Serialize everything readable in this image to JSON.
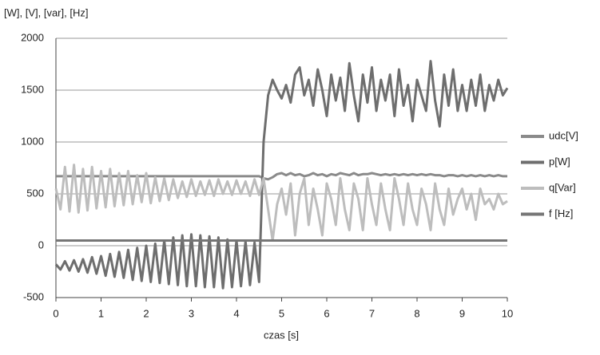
{
  "chart_data": {
    "type": "line",
    "y_axis_label": "[W], [V], [var], [Hz]",
    "x_axis_label": "czas [s]",
    "x": [
      0,
      0.1,
      0.2,
      0.3,
      0.4,
      0.5,
      0.6,
      0.7,
      0.8,
      0.9,
      1,
      1.1,
      1.2,
      1.3,
      1.4,
      1.5,
      1.6,
      1.7,
      1.8,
      1.9,
      2,
      2.1,
      2.2,
      2.3,
      2.4,
      2.5,
      2.6,
      2.7,
      2.8,
      2.9,
      3,
      3.1,
      3.2,
      3.3,
      3.4,
      3.5,
      3.6,
      3.7,
      3.8,
      3.9,
      4,
      4.1,
      4.2,
      4.3,
      4.4,
      4.5,
      4.6,
      4.7,
      4.8,
      4.9,
      5,
      5.1,
      5.2,
      5.3,
      5.4,
      5.5,
      5.6,
      5.7,
      5.8,
      5.9,
      6,
      6.1,
      6.2,
      6.3,
      6.4,
      6.5,
      6.6,
      6.7,
      6.8,
      6.9,
      7,
      7.1,
      7.2,
      7.3,
      7.4,
      7.5,
      7.6,
      7.7,
      7.8,
      7.9,
      8,
      8.1,
      8.2,
      8.3,
      8.4,
      8.5,
      8.6,
      8.7,
      8.8,
      8.9,
      9,
      9.1,
      9.2,
      9.3,
      9.4,
      9.5,
      9.6,
      9.7,
      9.8,
      9.9,
      10
    ],
    "series": [
      {
        "name": "udc[V]",
        "color": "#8a8a8a",
        "values": [
          670,
          670,
          670,
          670,
          670,
          670,
          670,
          670,
          670,
          670,
          670,
          670,
          670,
          670,
          670,
          670,
          670,
          670,
          670,
          670,
          670,
          670,
          670,
          670,
          670,
          670,
          670,
          670,
          670,
          670,
          670,
          670,
          670,
          670,
          670,
          670,
          670,
          670,
          670,
          670,
          670,
          670,
          670,
          670,
          670,
          670,
          650,
          640,
          660,
          690,
          700,
          680,
          700,
          680,
          690,
          670,
          680,
          700,
          680,
          690,
          670,
          690,
          680,
          700,
          690,
          680,
          700,
          680,
          690,
          690,
          700,
          690,
          680,
          690,
          680,
          690,
          680,
          690,
          680,
          690,
          680,
          690,
          680,
          690,
          680,
          680,
          670,
          680,
          680,
          670,
          680,
          670,
          680,
          670,
          680,
          670,
          680,
          670,
          680,
          670,
          670
        ]
      },
      {
        "name": "p[W]",
        "color": "#6e6e6e",
        "values": [
          -180,
          -230,
          -150,
          -240,
          -140,
          -250,
          -130,
          -260,
          -110,
          -270,
          -100,
          -290,
          -80,
          -300,
          -60,
          -310,
          -40,
          -330,
          -20,
          -340,
          0,
          -350,
          20,
          -360,
          50,
          -370,
          80,
          -380,
          100,
          -390,
          110,
          -390,
          100,
          -400,
          90,
          -400,
          80,
          -410,
          60,
          -400,
          50,
          -390,
          40,
          -380,
          30,
          -350,
          1000,
          1450,
          1600,
          1500,
          1420,
          1550,
          1380,
          1650,
          1720,
          1450,
          1600,
          1350,
          1700,
          1500,
          1250,
          1650,
          1400,
          1620,
          1300,
          1760,
          1450,
          1200,
          1650,
          1380,
          1720,
          1300,
          1600,
          1400,
          1650,
          1250,
          1700,
          1350,
          1550,
          1200,
          1600,
          1450,
          1300,
          1780,
          1400,
          1150,
          1650,
          1350,
          1700,
          1300,
          1550,
          1300,
          1600,
          1350,
          1650,
          1300,
          1550,
          1400,
          1600,
          1450,
          1520
        ]
      },
      {
        "name": "q[Var]",
        "color": "#bdbdbd",
        "values": [
          550,
          350,
          760,
          330,
          780,
          320,
          740,
          340,
          760,
          360,
          720,
          370,
          740,
          380,
          700,
          390,
          720,
          400,
          680,
          420,
          700,
          410,
          660,
          430,
          650,
          440,
          640,
          460,
          620,
          470,
          640,
          480,
          620,
          490,
          630,
          480,
          640,
          500,
          620,
          490,
          630,
          500,
          620,
          480,
          640,
          490,
          650,
          350,
          50,
          400,
          550,
          300,
          600,
          100,
          500,
          650,
          200,
          550,
          350,
          100,
          600,
          450,
          200,
          650,
          350,
          150,
          600,
          450,
          150,
          650,
          400,
          200,
          600,
          350,
          150,
          650,
          450,
          200,
          600,
          350,
          200,
          550,
          400,
          150,
          600,
          350,
          200,
          550,
          300,
          450,
          550,
          350,
          500,
          250,
          550,
          400,
          450,
          350,
          500,
          400,
          430
        ]
      },
      {
        "name": "f [Hz]",
        "color": "#767676",
        "values": [
          50,
          50,
          50,
          50,
          50,
          50,
          50,
          50,
          50,
          50,
          50,
          50,
          50,
          50,
          50,
          50,
          50,
          50,
          50,
          50,
          50,
          50,
          50,
          50,
          50,
          50,
          50,
          50,
          50,
          50,
          50,
          50,
          50,
          50,
          50,
          50,
          50,
          50,
          50,
          50,
          50,
          50,
          50,
          50,
          50,
          50,
          50,
          50,
          50,
          50,
          50,
          50,
          50,
          50,
          50,
          50,
          50,
          50,
          50,
          50,
          50,
          50,
          50,
          50,
          50,
          50,
          50,
          50,
          50,
          50,
          50,
          50,
          50,
          50,
          50,
          50,
          50,
          50,
          50,
          50,
          50,
          50,
          50,
          50,
          50,
          50,
          50,
          50,
          50,
          50,
          50,
          50,
          50,
          50,
          50,
          50,
          50,
          50,
          50,
          50,
          50
        ]
      }
    ],
    "xlim": [
      0,
      10
    ],
    "xticks": [
      0,
      1,
      2,
      3,
      4,
      5,
      6,
      7,
      8,
      9,
      10
    ],
    "ylim": [
      -500,
      2000
    ],
    "yticks": [
      -500,
      0,
      500,
      1000,
      1500,
      2000
    ],
    "grid": true,
    "legend": "right"
  }
}
